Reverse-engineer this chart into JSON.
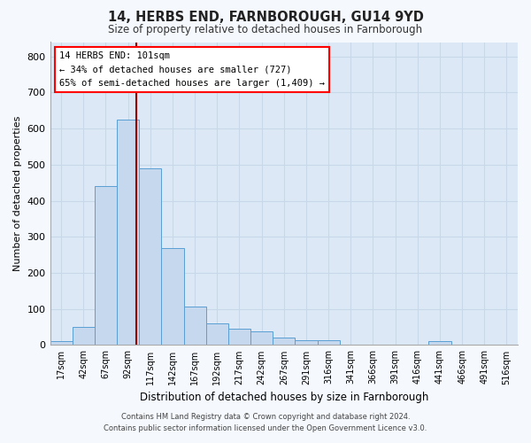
{
  "title": "14, HERBS END, FARNBOROUGH, GU14 9YD",
  "subtitle": "Size of property relative to detached houses in Farnborough",
  "xlabel": "Distribution of detached houses by size in Farnborough",
  "ylabel": "Number of detached properties",
  "footer1": "Contains HM Land Registry data © Crown copyright and database right 2024.",
  "footer2": "Contains public sector information licensed under the Open Government Licence v3.0.",
  "bar_color": "#c5d8ee",
  "bar_edgecolor": "#5a9fd4",
  "background_color": "#dce8f5",
  "grid_color": "#c8d8e8",
  "fig_facecolor": "#f5f8fc",
  "categories": [
    "17sqm",
    "42sqm",
    "67sqm",
    "92sqm",
    "117sqm",
    "142sqm",
    "167sqm",
    "192sqm",
    "217sqm",
    "242sqm",
    "267sqm",
    "291sqm",
    "316sqm",
    "341sqm",
    "366sqm",
    "391sqm",
    "416sqm",
    "441sqm",
    "466sqm",
    "491sqm",
    "516sqm"
  ],
  "values": [
    10,
    50,
    440,
    625,
    490,
    270,
    107,
    60,
    45,
    37,
    20,
    13,
    13,
    0,
    0,
    0,
    0,
    10,
    0,
    0,
    0
  ],
  "ylim": [
    0,
    840
  ],
  "yticks": [
    0,
    100,
    200,
    300,
    400,
    500,
    600,
    700,
    800
  ],
  "marker_label": "14 HERBS END: 101sqm",
  "annotation_line1": "← 34% of detached houses are smaller (727)",
  "annotation_line2": "65% of semi-detached houses are larger (1,409) →"
}
